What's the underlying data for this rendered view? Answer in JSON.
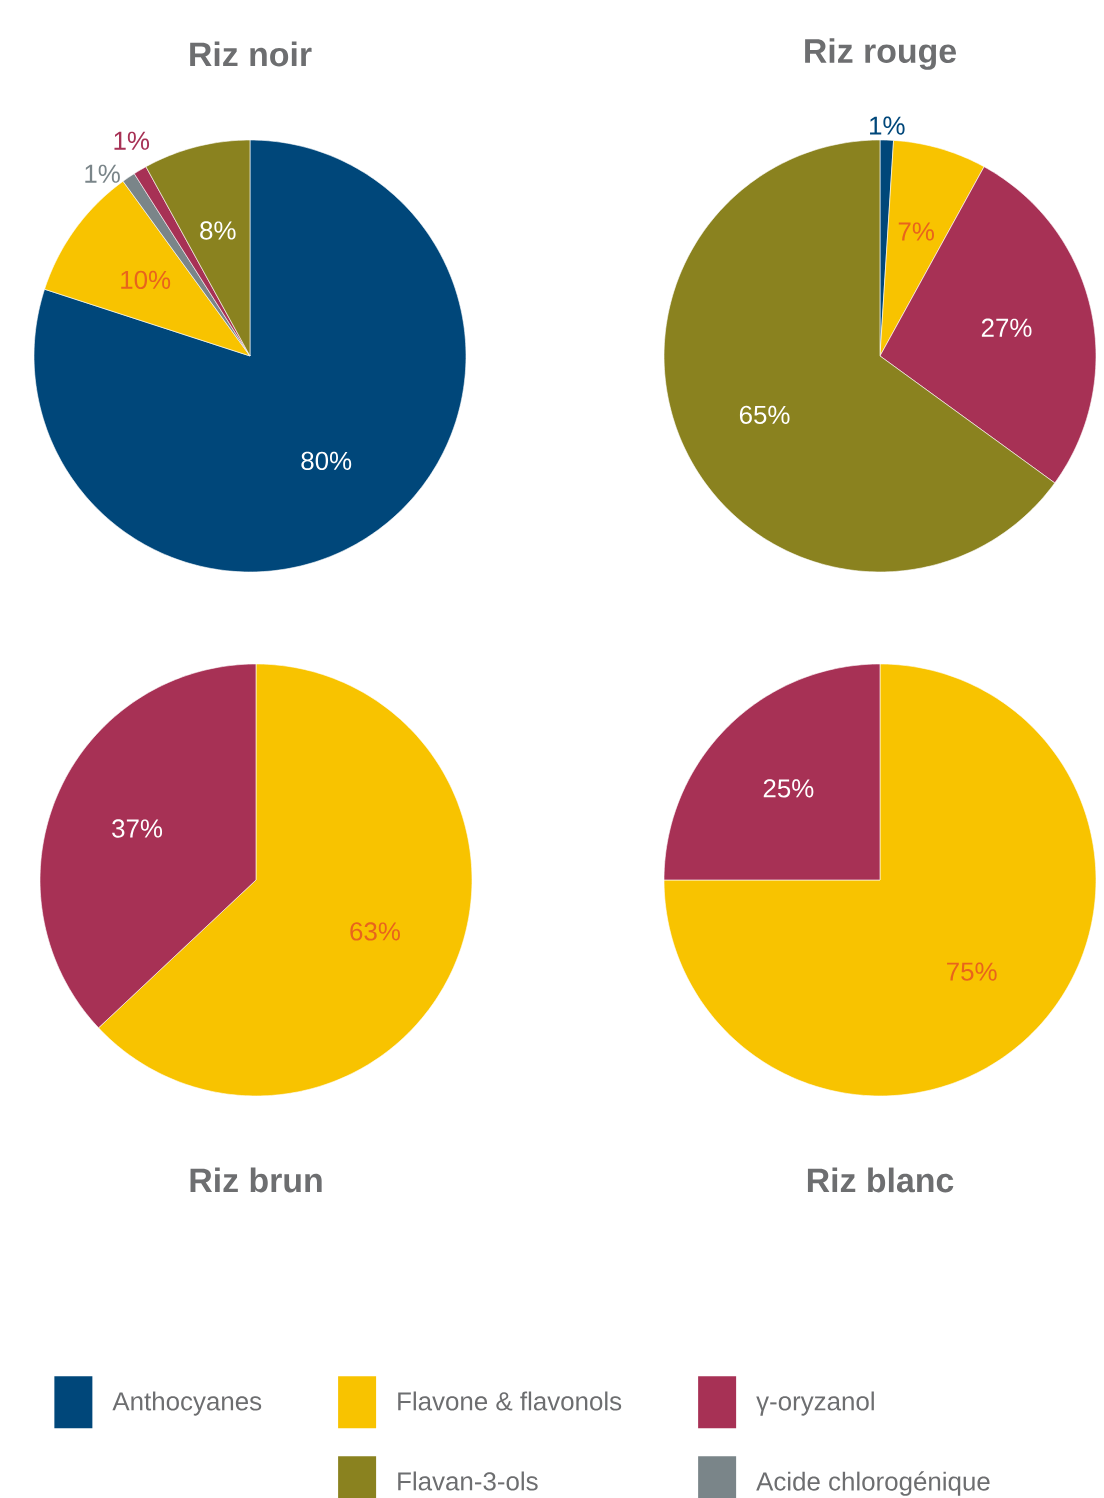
{
  "chart_data": [
    {
      "type": "pie",
      "title": "Riz noir",
      "categories": [
        "Anthocyanes",
        "Flavone & flavonols",
        "Acide chlorogénique",
        "γ-oryzanol",
        "Flavan-3-ols"
      ],
      "values": [
        80,
        10,
        1,
        1,
        8
      ],
      "value_labels": [
        "80%",
        "10%",
        "1%",
        "1%",
        "8%"
      ],
      "colors": [
        "#00477a",
        "#f8c300",
        "#7a8589",
        "#a73155",
        "#8a821f"
      ],
      "legend": "bottom"
    },
    {
      "type": "pie",
      "title": "Riz rouge",
      "categories": [
        null,
        null,
        null,
        null
      ],
      "values": [
        1,
        7,
        27,
        65
      ],
      "value_labels": [
        "1%",
        "7%",
        "27%",
        "65%"
      ],
      "colors": [
        "#00477a",
        "#f8c300",
        "#a73155",
        "#8a821f"
      ]
    },
    {
      "type": "pie",
      "title": "Riz brun",
      "categories": [
        null,
        null
      ],
      "values": [
        63,
        37
      ],
      "value_labels": [
        "63%",
        "37%"
      ],
      "colors": [
        "#f8c300",
        "#a73155"
      ]
    },
    {
      "type": "pie",
      "title": "Riz blanc",
      "categories": [
        null,
        null
      ],
      "values": [
        75,
        25
      ],
      "value_labels": [
        "75%",
        "25%"
      ],
      "colors": [
        "#f8c300",
        "#a73155"
      ]
    }
  ]
}
